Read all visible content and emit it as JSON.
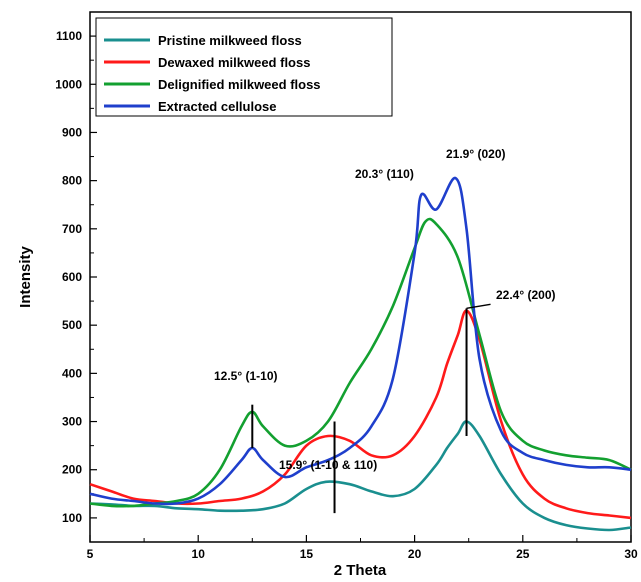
{
  "chart_data": {
    "type": "line",
    "title": "",
    "xlabel": "2 Theta",
    "ylabel": "Intensity",
    "xlim": [
      5,
      30
    ],
    "ylim": [
      50,
      1150
    ],
    "xticks": [
      5,
      10,
      15,
      20,
      25,
      30
    ],
    "yticks": [
      100,
      200,
      300,
      400,
      500,
      600,
      700,
      800,
      900,
      1000,
      1100
    ],
    "grid": false,
    "legend_position": "top-left",
    "series": [
      {
        "name": "Pristine milkweed floss",
        "color": "#1a8f8f",
        "x": [
          5,
          6,
          7,
          8,
          9,
          10,
          11,
          12,
          13,
          14,
          15,
          15.9,
          17,
          18,
          19,
          20,
          21,
          21.5,
          22,
          22.4,
          23,
          24,
          25,
          26,
          27,
          28,
          29,
          30
        ],
        "y": [
          130,
          128,
          125,
          125,
          120,
          118,
          115,
          115,
          118,
          130,
          160,
          175,
          170,
          155,
          145,
          160,
          210,
          245,
          275,
          300,
          270,
          190,
          130,
          100,
          85,
          78,
          75,
          80
        ]
      },
      {
        "name": "Dewaxed milkweed floss",
        "color": "#ff1a1a",
        "x": [
          5,
          6,
          7,
          8,
          9,
          10,
          11,
          12,
          13,
          14,
          15,
          16,
          17,
          18,
          19,
          20,
          21,
          21.5,
          22,
          22.4,
          23,
          24,
          25,
          26,
          27,
          28,
          29,
          30
        ],
        "y": [
          170,
          155,
          140,
          135,
          130,
          130,
          135,
          140,
          155,
          190,
          250,
          270,
          260,
          230,
          230,
          270,
          350,
          420,
          480,
          530,
          470,
          300,
          190,
          140,
          120,
          110,
          105,
          100
        ]
      },
      {
        "name": "Delignified milkweed floss",
        "color": "#13a030",
        "x": [
          5,
          6,
          7,
          8,
          9,
          10,
          11,
          12,
          12.5,
          13,
          14,
          15,
          16,
          17,
          18,
          19,
          20,
          20.5,
          21,
          22,
          23,
          24,
          25,
          26,
          27,
          28,
          29,
          30
        ],
        "y": [
          130,
          125,
          125,
          130,
          135,
          150,
          200,
          290,
          320,
          290,
          250,
          260,
          300,
          380,
          450,
          540,
          660,
          715,
          710,
          640,
          480,
          320,
          260,
          240,
          230,
          225,
          220,
          200
        ]
      },
      {
        "name": "Extracted cellulose",
        "color": "#1f3fcc",
        "x": [
          5,
          6,
          7,
          8,
          9,
          10,
          11,
          12,
          12.5,
          13,
          14,
          15,
          16,
          17,
          18,
          19,
          20,
          20.3,
          21,
          21.9,
          22.4,
          23,
          24,
          25,
          26,
          27,
          28,
          29,
          30
        ],
        "y": [
          150,
          140,
          135,
          130,
          130,
          140,
          170,
          220,
          245,
          220,
          185,
          205,
          220,
          245,
          290,
          390,
          650,
          770,
          740,
          805,
          700,
          430,
          280,
          235,
          220,
          210,
          205,
          205,
          200
        ]
      }
    ],
    "annotations": [
      {
        "text": "12.5° (1-10)",
        "x": 12.5,
        "y_low": 245,
        "y_high": 335
      },
      {
        "text": "15.9° (1-10 & 110)",
        "x": 16.3,
        "y_low": 110,
        "y_high": 300
      },
      {
        "text": "20.3° (110)",
        "x": 20.3
      },
      {
        "text": "21.9° (020)",
        "x": 21.9
      },
      {
        "text": "22.4° (200)",
        "x": 22.4,
        "y_low": 270,
        "y_high": 535
      }
    ]
  }
}
